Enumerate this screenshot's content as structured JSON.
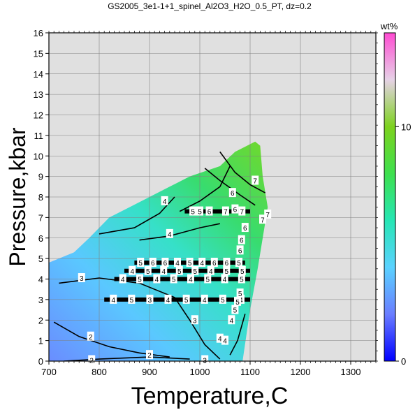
{
  "chart_data": {
    "type": "heatmap",
    "title": "GS2005_3e1-1+1_spinel_Al2O3_H2O_0.5_PT, dz=0.2",
    "xlabel": "Temperature,C",
    "ylabel": "Pressure,kbar",
    "xlim": [
      700,
      1350
    ],
    "ylim": [
      0,
      16
    ],
    "x_ticks": [
      700,
      800,
      900,
      1000,
      1100,
      1200,
      1300
    ],
    "y_ticks": [
      0,
      1,
      2,
      3,
      4,
      5,
      6,
      7,
      8,
      9,
      10,
      11,
      12,
      13,
      14,
      15,
      16
    ],
    "grid": true,
    "colorbar": {
      "label": "wt%",
      "range": [
        0,
        14
      ],
      "ticks": [
        0,
        10
      ],
      "position": "right",
      "colors": [
        "#0000ff",
        "#6a7dff",
        "#5ad2ff",
        "#26e6b4",
        "#3ee04e",
        "#7dd21e",
        "#e6d2e6",
        "#ff4bd2"
      ]
    },
    "field_boundary": [
      [
        700,
        0
      ],
      [
        1085,
        0
      ],
      [
        1100,
        2.5
      ],
      [
        1115,
        4.5
      ],
      [
        1125,
        6
      ],
      [
        1135,
        7.5
      ],
      [
        1125,
        9
      ],
      [
        1120,
        10.5
      ],
      [
        1110,
        10.7
      ],
      [
        1070,
        10.2
      ],
      [
        1040,
        9.5
      ],
      [
        980,
        9
      ],
      [
        940,
        8.5
      ],
      [
        900,
        8
      ],
      [
        860,
        7.5
      ],
      [
        820,
        7
      ],
      [
        780,
        6
      ],
      [
        750,
        5.3
      ],
      [
        700,
        4.8
      ]
    ],
    "contours": [
      {
        "label": "2",
        "points": [
          [
            730,
            0
          ],
          [
            800,
            0.1
          ],
          [
            900,
            0.2
          ],
          [
            980,
            0.1
          ]
        ]
      },
      {
        "label": "2",
        "points": [
          [
            710,
            1.9
          ],
          [
            760,
            1.2
          ],
          [
            820,
            0.7
          ],
          [
            880,
            0.4
          ],
          [
            940,
            0.2
          ]
        ]
      },
      {
        "label": "3",
        "points": [
          [
            720,
            3.8
          ],
          [
            800,
            4.05
          ],
          [
            880,
            3.8
          ],
          [
            950,
            3.1
          ],
          [
            980,
            2
          ],
          [
            1010,
            0.8
          ],
          [
            1040,
            0.1
          ]
        ]
      },
      {
        "label": "4",
        "points": [
          [
            800,
            6.2
          ],
          [
            870,
            6.5
          ],
          [
            920,
            7.2
          ],
          [
            950,
            8
          ]
        ]
      },
      {
        "label": "4",
        "points": [
          [
            880,
            5.9
          ],
          [
            940,
            6.1
          ],
          [
            1000,
            6.5
          ],
          [
            1040,
            6.7
          ]
        ]
      },
      {
        "label": "5",
        "points": [
          [
            960,
            7.3
          ],
          [
            1000,
            7.8
          ],
          [
            1040,
            8.5
          ],
          [
            1060,
            9.5
          ]
        ]
      },
      {
        "label": "6",
        "points": [
          [
            1010,
            9.4
          ],
          [
            1040,
            8.8
          ],
          [
            1080,
            8.1
          ],
          [
            1110,
            7.6
          ]
        ]
      },
      {
        "label": "7",
        "points": [
          [
            1040,
            10.2
          ],
          [
            1070,
            9.2
          ],
          [
            1100,
            8.6
          ],
          [
            1130,
            8.2
          ]
        ]
      },
      {
        "label": "5",
        "points": [
          [
            1060,
            0.3
          ],
          [
            1075,
            1
          ],
          [
            1090,
            2.3
          ]
        ]
      }
    ],
    "contour_labels": [
      {
        "text": "2",
        "x": 783,
        "y": 1.2
      },
      {
        "text": "2",
        "x": 900,
        "y": 0.3
      },
      {
        "text": "2",
        "x": 785,
        "y": 0.05
      },
      {
        "text": "3",
        "x": 765,
        "y": 4.05
      },
      {
        "text": "3",
        "x": 1010,
        "y": 0.05
      },
      {
        "text": "3",
        "x": 990,
        "y": 2
      },
      {
        "text": "4",
        "x": 930,
        "y": 7.8
      },
      {
        "text": "4",
        "x": 940,
        "y": 6.2
      },
      {
        "text": "4",
        "x": 1040,
        "y": 1.1
      },
      {
        "text": "4",
        "x": 1050,
        "y": 1.0
      },
      {
        "text": "4",
        "x": 1063,
        "y": 2.0
      },
      {
        "text": "5",
        "x": 1000,
        "y": 7.3
      },
      {
        "text": "5",
        "x": 1070,
        "y": 2.5
      },
      {
        "text": "5",
        "x": 1075,
        "y": 2.9
      },
      {
        "text": "5",
        "x": 1080,
        "y": 3.3
      },
      {
        "text": "6",
        "x": 1070,
        "y": 7.4
      },
      {
        "text": "6",
        "x": 1065,
        "y": 8.2
      },
      {
        "text": "6",
        "x": 1083,
        "y": 5.9
      },
      {
        "text": "6",
        "x": 1090,
        "y": 6.5
      },
      {
        "text": "6",
        "x": 1080,
        "y": 5.4
      },
      {
        "text": "7",
        "x": 1110,
        "y": 8.8
      },
      {
        "text": "7",
        "x": 1125,
        "y": 6.9
      },
      {
        "text": "7",
        "x": 1135,
        "y": 7.15
      }
    ],
    "bands": [
      {
        "y": 7.3,
        "x0": 970,
        "x1": 1100,
        "labels": [
          "5",
          "6",
          "7",
          "7"
        ]
      },
      {
        "y": 4.8,
        "x0": 870,
        "x1": 1090,
        "labels": [
          "5",
          "6",
          "6",
          "4",
          "5",
          "4",
          "6",
          "6",
          "5"
        ]
      },
      {
        "y": 4.4,
        "x0": 850,
        "x1": 1100,
        "labels": [
          "4",
          "5",
          "4",
          "5",
          "5",
          "4",
          "5",
          "5"
        ]
      },
      {
        "y": 4.0,
        "x0": 830,
        "x1": 1100,
        "labels": [
          "4",
          "5",
          "4",
          "5",
          "4",
          "5",
          "4",
          "5"
        ]
      },
      {
        "y": 3.0,
        "x0": 810,
        "x1": 1100,
        "labels": [
          "4",
          "5",
          "3",
          "4",
          "5",
          "4",
          "5",
          "4"
        ]
      }
    ]
  }
}
